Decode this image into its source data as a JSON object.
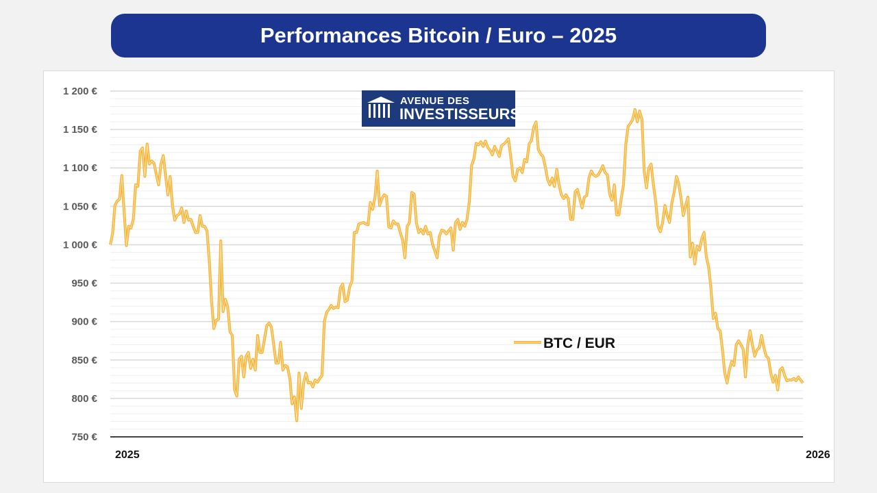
{
  "header": {
    "title": "Performances Bitcoin / Euro – 2025"
  },
  "logo": {
    "line1": "AVENUE DES",
    "line2": "INVESTISSEURS",
    "color": "#1d3a7c"
  },
  "chart_data": {
    "type": "line",
    "title": "",
    "xlabel": "",
    "ylabel": "",
    "x_ticks": [
      "2025",
      "2026"
    ],
    "ylim": [
      750,
      1200
    ],
    "y_ticks": [
      750,
      800,
      850,
      900,
      950,
      1000,
      1050,
      1100,
      1150,
      1200
    ],
    "y_tick_labels": [
      "750 €",
      "800 €",
      "850 €",
      "900 €",
      "950 €",
      "1 000 €",
      "1 050 €",
      "1 100 €",
      "1 150 €",
      "1 200 €"
    ],
    "grid": true,
    "legend_position": "center-right",
    "series": [
      {
        "name": "BTC / EUR",
        "color": "#f9b233",
        "values": [
          1000,
          1015,
          1051,
          1057,
          1059,
          1090,
          1042,
          999,
          1024,
          1022,
          1033,
          1078,
          1076,
          1122,
          1126,
          1089,
          1131,
          1105,
          1109,
          1106,
          1091,
          1078,
          1105,
          1116,
          1091,
          1065,
          1089,
          1051,
          1032,
          1038,
          1040,
          1048,
          1029,
          1044,
          1032,
          1033,
          1024,
          1016,
          1016,
          1038,
          1024,
          1024,
          1018,
          980,
          926,
          891,
          902,
          903,
          1005,
          913,
          929,
          919,
          887,
          882,
          811,
          803,
          851,
          855,
          828,
          855,
          860,
          839,
          851,
          837,
          882,
          860,
          860,
          877,
          895,
          898,
          893,
          870,
          846,
          846,
          873,
          837,
          843,
          841,
          826,
          793,
          802,
          771,
          833,
          787,
          820,
          833,
          820,
          821,
          815,
          824,
          821,
          826,
          830,
          900,
          912,
          916,
          921,
          917,
          919,
          918,
          944,
          949,
          926,
          928,
          945,
          953,
          1016,
          1016,
          1027,
          1028,
          1029,
          1027,
          1026,
          1055,
          1046,
          1062,
          1096,
          1051,
          1060,
          1065,
          1063,
          1023,
          1022,
          1031,
          1027,
          1027,
          1016,
          1006,
          983,
          1024,
          1029,
          1068,
          1066,
          1029,
          1016,
          1020,
          1014,
          1024,
          1014,
          1016,
          1001,
          992,
          983,
          1011,
          1019,
          1018,
          1014,
          1018,
          1022,
          993,
          1029,
          1033,
          1020,
          1029,
          1024,
          1033,
          1056,
          1103,
          1112,
          1132,
          1130,
          1134,
          1128,
          1135,
          1127,
          1123,
          1117,
          1128,
          1122,
          1115,
          1129,
          1131,
          1134,
          1138,
          1115,
          1089,
          1083,
          1098,
          1100,
          1094,
          1111,
          1108,
          1131,
          1136,
          1153,
          1160,
          1124,
          1118,
          1115,
          1102,
          1085,
          1078,
          1087,
          1076,
          1098,
          1078,
          1065,
          1060,
          1065,
          1060,
          1033,
          1033,
          1069,
          1072,
          1060,
          1048,
          1062,
          1064,
          1087,
          1096,
          1091,
          1089,
          1091,
          1096,
          1103,
          1094,
          1091,
          1066,
          1058,
          1078,
          1039,
          1039,
          1060,
          1078,
          1131,
          1154,
          1158,
          1163,
          1176,
          1160,
          1174,
          1163,
          1096,
          1074,
          1100,
          1105,
          1078,
          1056,
          1024,
          1017,
          1029,
          1051,
          1038,
          1029,
          1054,
          1068,
          1089,
          1080,
          1060,
          1038,
          1051,
          1062,
          984,
          1002,
          975,
          998,
          993,
          1008,
          1016,
          984,
          971,
          944,
          904,
          911,
          891,
          888,
          864,
          833,
          820,
          837,
          848,
          843,
          870,
          875,
          870,
          864,
          828,
          870,
          888,
          870,
          855,
          863,
          866,
          882,
          866,
          855,
          852,
          833,
          821,
          830,
          811,
          837,
          840,
          830,
          823,
          824,
          824,
          826,
          823,
          828,
          824,
          820
        ]
      }
    ]
  }
}
